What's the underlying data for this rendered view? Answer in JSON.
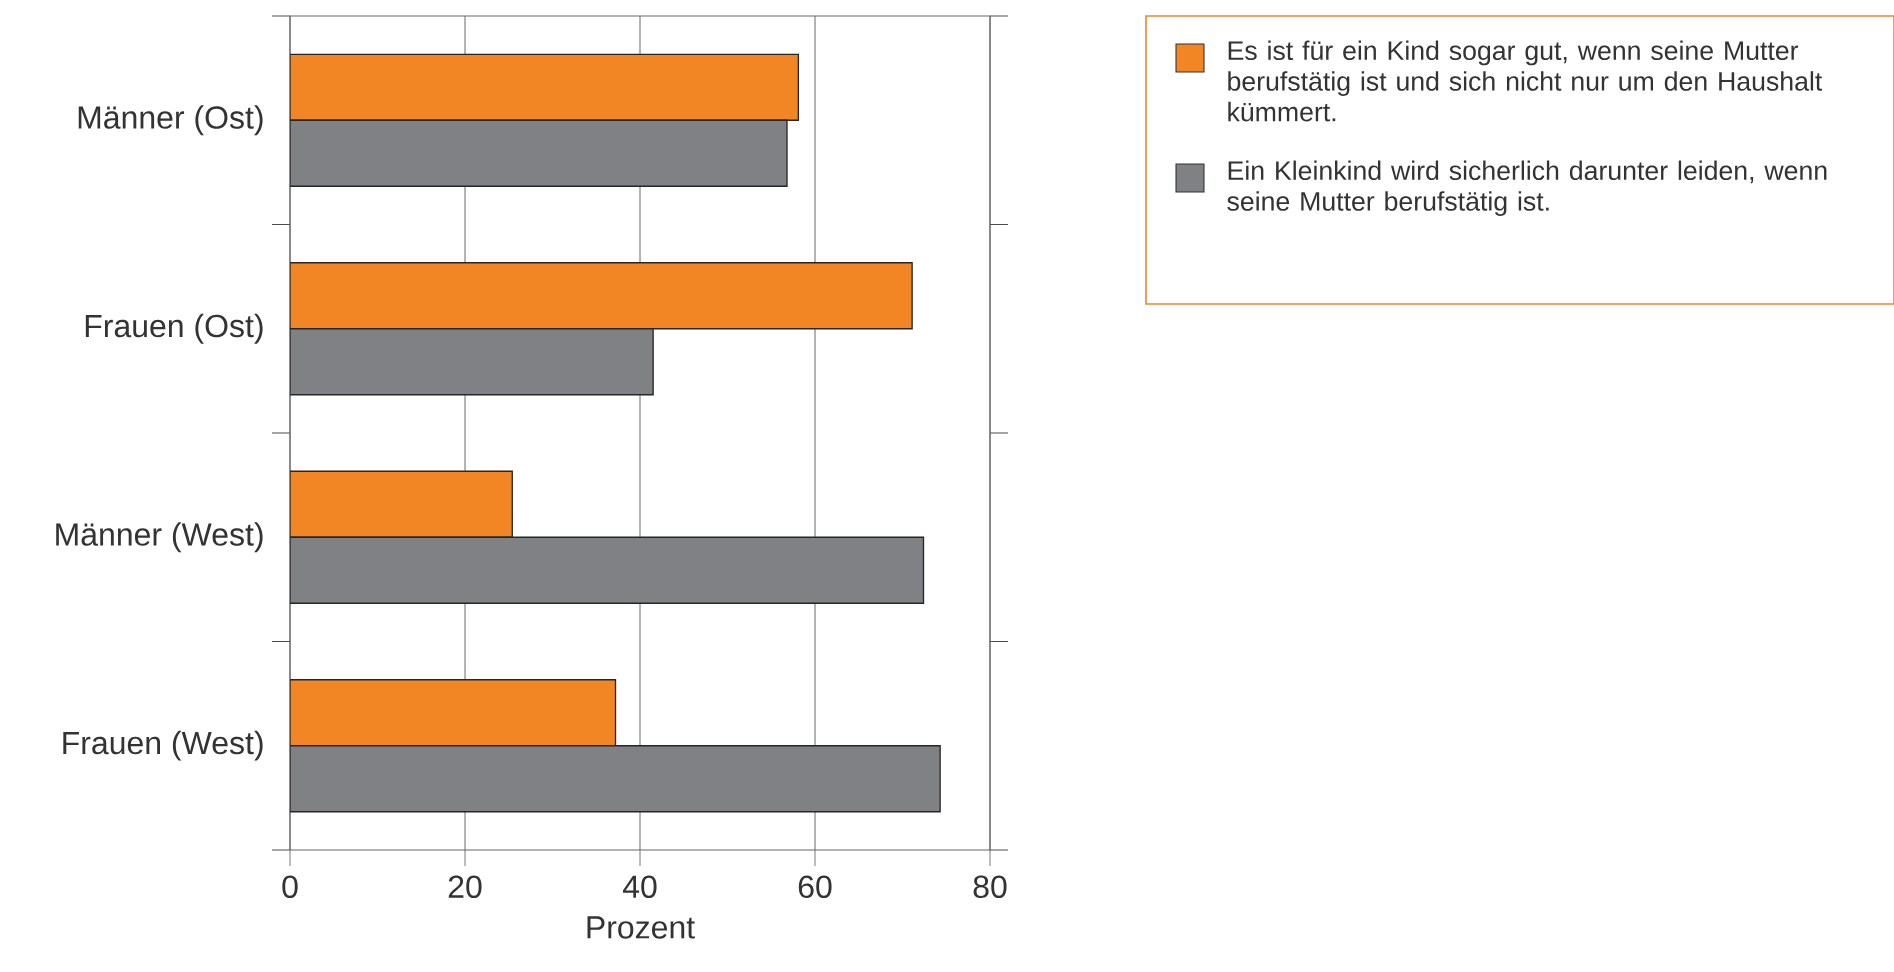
{
  "chart_data": {
    "type": "bar",
    "orientation": "horizontal",
    "xlabel": "Prozent",
    "categories": [
      "Männer (Ost)",
      "Frauen (Ost)",
      "Männer (West)",
      "Frauen (West)"
    ],
    "series": [
      {
        "name": "Es ist für ein Kind sogar gut, wenn seine Mutter berufstätig ist und sich nicht nur um den Haushalt kümmert.",
        "color": "#f28524",
        "values": [
          58.1,
          71.1,
          25.4,
          37.2
        ]
      },
      {
        "name": "Ein Kleinkind wird sicherlich darunter leiden, wenn seine Mutter berufstätig ist.",
        "color": "#808184",
        "values": [
          56.8,
          41.5,
          72.4,
          74.3
        ]
      }
    ],
    "xlim": [
      0,
      80
    ],
    "xticks": [
      0,
      20,
      40,
      60,
      80
    ],
    "grid": "x",
    "legend": "top right"
  }
}
